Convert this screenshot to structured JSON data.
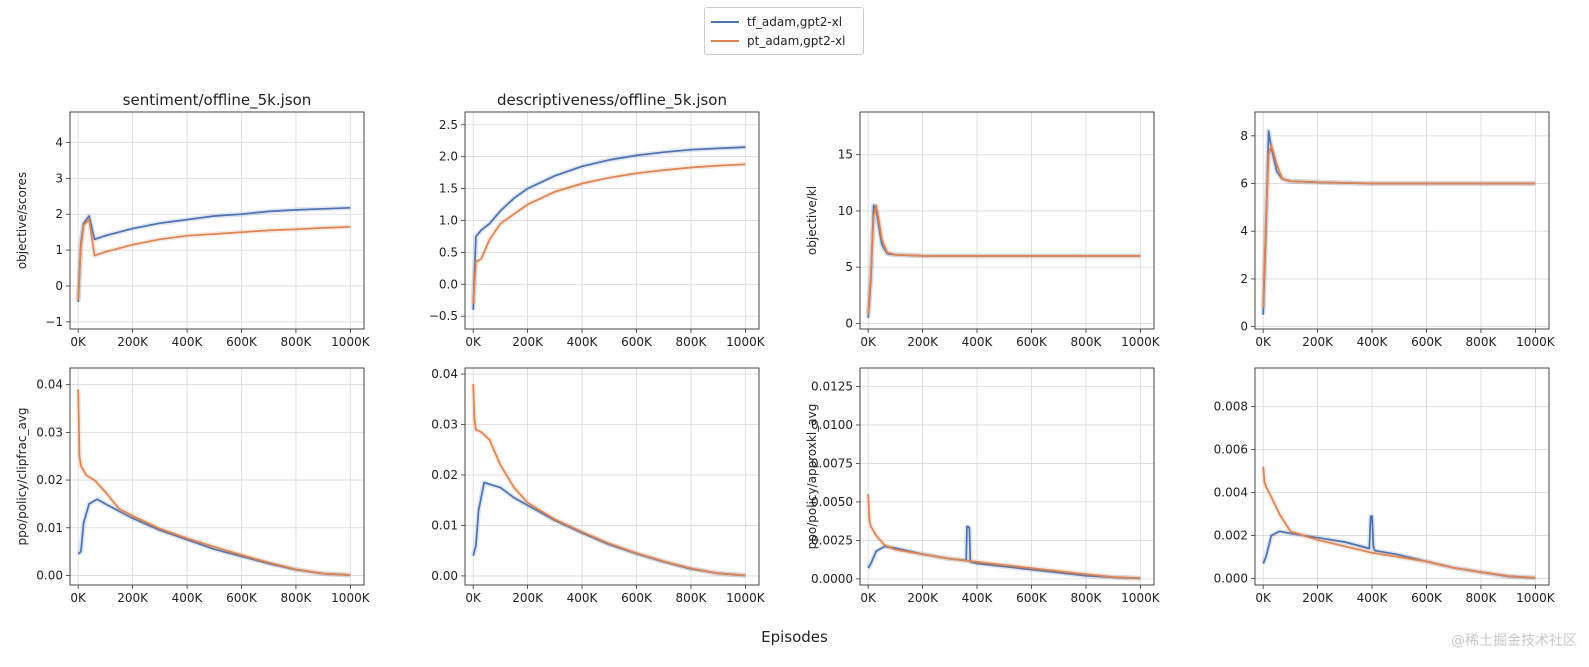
{
  "legend": {
    "entries": [
      {
        "label": "tf_adam,gpt2-xl",
        "color": "#4c72b0"
      },
      {
        "label": "pt_adam,gpt2-xl",
        "color": "#dd8452"
      }
    ]
  },
  "figure": {
    "xlabel": "Episodes",
    "watermark": "@稀土掘金技术社区"
  },
  "chart_data": [
    {
      "type": "line",
      "title": "sentiment/offline_5k.json",
      "ylabel": "objective/scores",
      "xlim": [
        -30,
        1050
      ],
      "ylim": [
        -1.2,
        4.85
      ],
      "x_ticks": [
        0,
        200,
        400,
        600,
        800,
        1000
      ],
      "x_tick_labels": [
        "0K",
        "200K",
        "400K",
        "600K",
        "800K",
        "1000K"
      ],
      "y_ticks": [
        -1,
        0,
        1,
        2,
        3,
        4
      ],
      "y_tick_labels": [
        "−1",
        "0",
        "1",
        "2",
        "3",
        "4"
      ],
      "series": [
        {
          "name": "tf_adam,gpt2-xl",
          "x": [
            0,
            10,
            20,
            40,
            60,
            100,
            200,
            300,
            400,
            500,
            600,
            700,
            800,
            900,
            1000
          ],
          "values": [
            -0.45,
            1.2,
            1.75,
            1.95,
            1.3,
            1.4,
            1.6,
            1.75,
            1.85,
            1.95,
            2.0,
            2.08,
            2.12,
            2.15,
            2.18
          ]
        },
        {
          "name": "pt_adam,gpt2-xl",
          "x": [
            0,
            10,
            20,
            40,
            60,
            100,
            200,
            300,
            400,
            500,
            600,
            700,
            800,
            900,
            1000
          ],
          "values": [
            -0.4,
            1.1,
            1.7,
            1.85,
            0.85,
            0.95,
            1.15,
            1.3,
            1.4,
            1.45,
            1.5,
            1.55,
            1.58,
            1.62,
            1.65
          ]
        }
      ]
    },
    {
      "type": "line",
      "title": "descriptiveness/offline_5k.json",
      "ylabel": "",
      "xlim": [
        -30,
        1050
      ],
      "ylim": [
        -0.7,
        2.7
      ],
      "x_ticks": [
        0,
        200,
        400,
        600,
        800,
        1000
      ],
      "x_tick_labels": [
        "0K",
        "200K",
        "400K",
        "600K",
        "800K",
        "1000K"
      ],
      "y_ticks": [
        -0.5,
        0.0,
        0.5,
        1.0,
        1.5,
        2.0,
        2.5
      ],
      "y_tick_labels": [
        "−0.5",
        "0.0",
        "0.5",
        "1.0",
        "1.5",
        "2.0",
        "2.5"
      ],
      "series": [
        {
          "name": "tf_adam,gpt2-xl",
          "x": [
            0,
            10,
            30,
            60,
            100,
            150,
            200,
            300,
            400,
            500,
            600,
            700,
            800,
            900,
            1000
          ],
          "values": [
            -0.4,
            0.75,
            0.85,
            0.95,
            1.15,
            1.35,
            1.5,
            1.7,
            1.85,
            1.95,
            2.02,
            2.07,
            2.11,
            2.13,
            2.15
          ]
        },
        {
          "name": "pt_adam,gpt2-xl",
          "x": [
            0,
            10,
            30,
            60,
            100,
            150,
            200,
            300,
            400,
            500,
            600,
            700,
            800,
            900,
            1000
          ],
          "values": [
            -0.3,
            0.35,
            0.4,
            0.7,
            0.95,
            1.1,
            1.25,
            1.45,
            1.58,
            1.67,
            1.74,
            1.79,
            1.83,
            1.86,
            1.88
          ]
        }
      ]
    },
    {
      "type": "line",
      "title": "",
      "ylabel": "objective/kl",
      "xlim": [
        -30,
        1050
      ],
      "ylim": [
        -0.5,
        18.8
      ],
      "x_ticks": [
        0,
        200,
        400,
        600,
        800,
        1000
      ],
      "x_tick_labels": [
        "0K",
        "200K",
        "400K",
        "600K",
        "800K",
        "1000K"
      ],
      "y_ticks": [
        0,
        5,
        10,
        15
      ],
      "y_tick_labels": [
        "0",
        "5",
        "10",
        "15"
      ],
      "series": [
        {
          "name": "tf_adam,gpt2-xl",
          "x": [
            0,
            10,
            20,
            30,
            50,
            70,
            100,
            200,
            400,
            600,
            800,
            1000
          ],
          "values": [
            0.5,
            4.0,
            10.5,
            10.0,
            7.0,
            6.2,
            6.1,
            6.0,
            6.0,
            6.0,
            6.0,
            6.0
          ]
        },
        {
          "name": "pt_adam,gpt2-xl",
          "x": [
            0,
            10,
            20,
            30,
            50,
            70,
            100,
            200,
            400,
            600,
            800,
            1000
          ],
          "values": [
            0.8,
            4.5,
            9.5,
            10.5,
            7.5,
            6.3,
            6.1,
            6.0,
            6.0,
            6.0,
            6.0,
            6.0
          ]
        }
      ]
    },
    {
      "type": "line",
      "title": "",
      "ylabel": "",
      "xlim": [
        -30,
        1050
      ],
      "ylim": [
        -0.1,
        9.0
      ],
      "x_ticks": [
        0,
        200,
        400,
        600,
        800,
        1000
      ],
      "x_tick_labels": [
        "0K",
        "200K",
        "400K",
        "600K",
        "800K",
        "1000K"
      ],
      "y_ticks": [
        0,
        2,
        4,
        6,
        8
      ],
      "y_tick_labels": [
        "0",
        "2",
        "4",
        "6",
        "8"
      ],
      "series": [
        {
          "name": "tf_adam,gpt2-xl",
          "x": [
            0,
            10,
            20,
            30,
            50,
            70,
            100,
            200,
            400,
            600,
            800,
            1000
          ],
          "values": [
            0.5,
            4.0,
            8.2,
            7.5,
            6.5,
            6.2,
            6.1,
            6.05,
            6.0,
            6.0,
            6.0,
            6.0
          ]
        },
        {
          "name": "pt_adam,gpt2-xl",
          "x": [
            0,
            10,
            20,
            30,
            50,
            70,
            100,
            200,
            400,
            600,
            800,
            1000
          ],
          "values": [
            0.8,
            4.5,
            7.2,
            7.6,
            6.8,
            6.2,
            6.1,
            6.05,
            6.0,
            6.0,
            6.0,
            6.0
          ]
        }
      ]
    },
    {
      "type": "line",
      "title": "",
      "ylabel": "ppo/policy/clipfrac_avg",
      "xlim": [
        -30,
        1050
      ],
      "ylim": [
        -0.002,
        0.0435
      ],
      "x_ticks": [
        0,
        200,
        400,
        600,
        800,
        1000
      ],
      "x_tick_labels": [
        "0K",
        "200K",
        "400K",
        "600K",
        "800K",
        "1000K"
      ],
      "y_ticks": [
        0.0,
        0.01,
        0.02,
        0.03,
        0.04
      ],
      "y_tick_labels": [
        "0.00",
        "0.01",
        "0.02",
        "0.03",
        "0.04"
      ],
      "series": [
        {
          "name": "tf_adam,gpt2-xl",
          "x": [
            0,
            10,
            20,
            40,
            70,
            100,
            150,
            200,
            300,
            400,
            500,
            600,
            700,
            800,
            900,
            1000
          ],
          "values": [
            0.0045,
            0.005,
            0.011,
            0.015,
            0.016,
            0.015,
            0.0135,
            0.012,
            0.0095,
            0.0075,
            0.0055,
            0.004,
            0.0025,
            0.0012,
            0.0004,
            0.0001
          ]
        },
        {
          "name": "pt_adam,gpt2-xl",
          "x": [
            0,
            5,
            10,
            30,
            60,
            100,
            150,
            200,
            300,
            400,
            500,
            600,
            700,
            800,
            900,
            1000
          ],
          "values": [
            0.039,
            0.025,
            0.023,
            0.021,
            0.02,
            0.0175,
            0.014,
            0.0125,
            0.0098,
            0.0078,
            0.006,
            0.0043,
            0.0027,
            0.0013,
            0.0004,
            0.0001
          ]
        }
      ]
    },
    {
      "type": "line",
      "title": "",
      "ylabel": "",
      "xlim": [
        -30,
        1050
      ],
      "ylim": [
        -0.0018,
        0.0412
      ],
      "x_ticks": [
        0,
        200,
        400,
        600,
        800,
        1000
      ],
      "x_tick_labels": [
        "0K",
        "200K",
        "400K",
        "600K",
        "800K",
        "1000K"
      ],
      "y_ticks": [
        0.0,
        0.01,
        0.02,
        0.03,
        0.04
      ],
      "y_tick_labels": [
        "0.00",
        "0.01",
        "0.02",
        "0.03",
        "0.04"
      ],
      "series": [
        {
          "name": "tf_adam,gpt2-xl",
          "x": [
            0,
            10,
            20,
            40,
            70,
            100,
            150,
            200,
            300,
            400,
            500,
            600,
            700,
            800,
            900,
            1000
          ],
          "values": [
            0.004,
            0.006,
            0.013,
            0.0185,
            0.018,
            0.0175,
            0.0155,
            0.014,
            0.011,
            0.0085,
            0.0062,
            0.0044,
            0.0028,
            0.0014,
            0.0005,
            0.0001
          ]
        },
        {
          "name": "pt_adam,gpt2-xl",
          "x": [
            0,
            5,
            10,
            30,
            60,
            100,
            150,
            200,
            300,
            400,
            500,
            600,
            700,
            800,
            900,
            1000
          ],
          "values": [
            0.038,
            0.031,
            0.029,
            0.0285,
            0.027,
            0.022,
            0.0175,
            0.0145,
            0.0112,
            0.0087,
            0.0064,
            0.0045,
            0.0029,
            0.0015,
            0.0005,
            0.0001
          ]
        }
      ]
    },
    {
      "type": "line",
      "title": "",
      "ylabel": "ppo/policy/approxkl_avg",
      "xlim": [
        -30,
        1050
      ],
      "ylim": [
        -0.0004,
        0.0137
      ],
      "x_ticks": [
        0,
        200,
        400,
        600,
        800,
        1000
      ],
      "x_tick_labels": [
        "0K",
        "200K",
        "400K",
        "600K",
        "800K",
        "1000K"
      ],
      "y_ticks": [
        0.0,
        0.0025,
        0.005,
        0.0075,
        0.01,
        0.0125
      ],
      "y_tick_labels": [
        "0.0000",
        "0.0025",
        "0.0050",
        "0.0075",
        "0.0100",
        "0.0125"
      ],
      "series": [
        {
          "name": "tf_adam,gpt2-xl",
          "x": [
            0,
            10,
            30,
            60,
            100,
            200,
            300,
            360,
            363,
            366,
            372,
            375,
            400,
            500,
            600,
            700,
            800,
            900,
            1000
          ],
          "values": [
            0.0007,
            0.001,
            0.0018,
            0.0021,
            0.002,
            0.0016,
            0.0013,
            0.0012,
            0.0034,
            0.0034,
            0.0033,
            0.0011,
            0.001,
            0.0008,
            0.0006,
            0.0004,
            0.0002,
            0.0001,
            3e-05
          ]
        },
        {
          "name": "pt_adam,gpt2-xl",
          "x": [
            0,
            5,
            10,
            30,
            60,
            100,
            200,
            300,
            400,
            500,
            600,
            700,
            800,
            900,
            1000
          ],
          "values": [
            0.0055,
            0.0038,
            0.0034,
            0.0028,
            0.0022,
            0.0019,
            0.0016,
            0.0013,
            0.0011,
            0.0009,
            0.0007,
            0.0005,
            0.0003,
            0.00012,
            4e-05
          ]
        }
      ]
    },
    {
      "type": "line",
      "title": "",
      "ylabel": "",
      "xlim": [
        -30,
        1050
      ],
      "ylim": [
        -0.0003,
        0.0098
      ],
      "x_ticks": [
        0,
        200,
        400,
        600,
        800,
        1000
      ],
      "x_tick_labels": [
        "0K",
        "200K",
        "400K",
        "600K",
        "800K",
        "1000K"
      ],
      "y_ticks": [
        0.0,
        0.002,
        0.004,
        0.006,
        0.008
      ],
      "y_tick_labels": [
        "0.000",
        "0.002",
        "0.004",
        "0.006",
        "0.008"
      ],
      "series": [
        {
          "name": "tf_adam,gpt2-xl",
          "x": [
            0,
            10,
            30,
            60,
            100,
            200,
            300,
            390,
            395,
            400,
            405,
            410,
            500,
            600,
            700,
            800,
            900,
            1000
          ],
          "values": [
            0.0007,
            0.001,
            0.002,
            0.0022,
            0.0021,
            0.0019,
            0.0017,
            0.0014,
            0.0029,
            0.0029,
            0.0015,
            0.0013,
            0.0011,
            0.0008,
            0.0005,
            0.0003,
            0.0001,
            3e-05
          ]
        },
        {
          "name": "pt_adam,gpt2-xl",
          "x": [
            0,
            5,
            10,
            30,
            60,
            100,
            200,
            300,
            400,
            500,
            600,
            700,
            800,
            900,
            1000
          ],
          "values": [
            0.0052,
            0.0045,
            0.0043,
            0.0038,
            0.003,
            0.0022,
            0.0018,
            0.0015,
            0.0012,
            0.001,
            0.0008,
            0.0005,
            0.0003,
            0.00012,
            4e-05
          ]
        }
      ]
    }
  ]
}
